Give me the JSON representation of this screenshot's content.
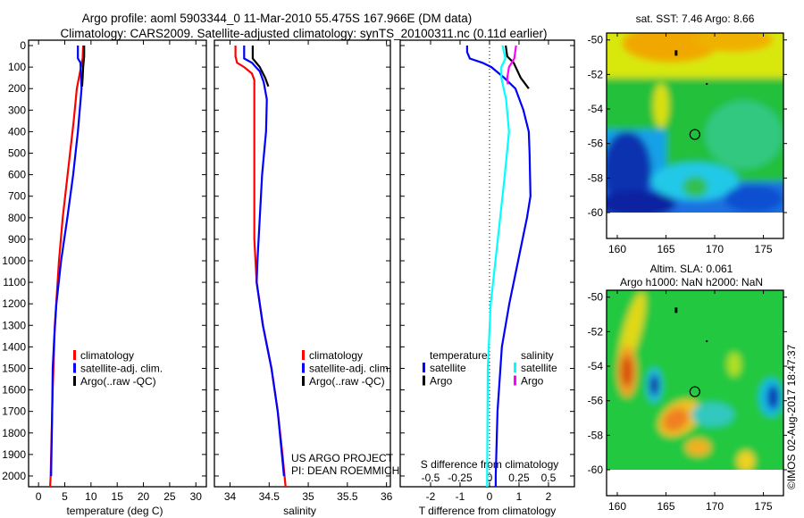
{
  "header": {
    "title_line1": "Argo profile: aoml 5903344_0 11-Mar-2010 55.475S 167.966E (DM data)",
    "title_line2": "Climatology: CARS2009. Satellite-adjusted climatology: synTS_20100311.nc (0.11d earlier)"
  },
  "credits": {
    "project": "US ARGO PROJECT",
    "pi": "PI: DEAN ROEMMICH",
    "stamp": "©IMOS 02-Aug-2017 18:47:37"
  },
  "colors": {
    "climatology": "#ff0000",
    "satellite": "#0000ff",
    "argo": "#000000",
    "salinity_satellite": "#00ffff",
    "salinity_argo": "#ff00ff"
  },
  "chart_data": [
    {
      "type": "line",
      "title": "",
      "xlabel": "temperature (deg C)",
      "ylabel": "",
      "xlim": [
        -1.9,
        32
      ],
      "ylim": [
        2050,
        -25
      ],
      "xticks": [
        "0",
        "5",
        "10",
        "15",
        "20",
        "25",
        "30"
      ],
      "xtick_values": [
        0,
        5,
        10,
        15,
        20,
        25,
        30
      ],
      "yticks": [
        "0",
        "100",
        "200",
        "300",
        "400",
        "500",
        "600",
        "700",
        "800",
        "900",
        "1000",
        "1100",
        "1200",
        "1300",
        "1400",
        "1500",
        "1600",
        "1700",
        "1800",
        "1900",
        "2000"
      ],
      "ytick_values": [
        0,
        100,
        200,
        300,
        400,
        500,
        600,
        700,
        800,
        900,
        1000,
        1100,
        1200,
        1300,
        1400,
        1500,
        1600,
        1700,
        1800,
        1900,
        2000
      ],
      "legend": [
        "climatology",
        "satellite-adj. clim.",
        "Argo(..raw -QC)"
      ],
      "series": [
        {
          "name": "climatology",
          "color": "#ff0000",
          "depth": [
            0,
            60,
            100,
            200,
            350,
            500,
            650,
            800,
            1000,
            1150,
            1300,
            1450,
            1600,
            1800,
            2000,
            2050
          ],
          "values": [
            8.5,
            8.4,
            8.1,
            7.3,
            6.7,
            6.0,
            5.3,
            4.6,
            3.9,
            3.5,
            3.1,
            2.9,
            2.7,
            2.5,
            2.3,
            2.2
          ]
        },
        {
          "name": "satellite-adj. clim.",
          "color": "#0000ff",
          "depth": [
            0,
            60,
            80,
            200,
            400,
            600,
            800,
            1000,
            1200,
            1350,
            1500,
            1700,
            2000
          ],
          "values": [
            7.5,
            7.5,
            8.0,
            8.2,
            7.5,
            6.6,
            5.5,
            4.3,
            3.4,
            3.0,
            2.7,
            2.6,
            2.4
          ]
        },
        {
          "name": "Argo(..raw -QC)",
          "color": "#000000",
          "depth": [
            0,
            50,
            100,
            150,
            190
          ],
          "values": [
            8.7,
            8.7,
            8.5,
            8.4,
            8.3
          ]
        }
      ]
    },
    {
      "type": "line",
      "xlabel": "salinity",
      "xlim": [
        33.8,
        36.05
      ],
      "ylim": [
        2050,
        -25
      ],
      "xticks": [
        "34",
        "34.5",
        "35",
        "35.5",
        "36"
      ],
      "xtick_values": [
        34,
        34.5,
        35,
        35.5,
        36
      ],
      "legend": [
        "climatology",
        "satellite-adj. clim.",
        "Argo(..raw -QC)"
      ],
      "series": [
        {
          "name": "climatology",
          "color": "#ff0000",
          "depth": [
            0,
            50,
            80,
            100,
            130,
            160,
            300,
            600,
            900,
            1100,
            1300,
            1500,
            1700,
            1900,
            2050
          ],
          "values": [
            34.07,
            34.07,
            34.09,
            34.18,
            34.28,
            34.31,
            34.31,
            34.31,
            34.31,
            34.34,
            34.42,
            34.53,
            34.61,
            34.67,
            34.71
          ]
        },
        {
          "name": "satellite-adj. clim.",
          "color": "#0000ff",
          "depth": [
            0,
            60,
            80,
            120,
            170,
            250,
            400,
            600,
            800,
            1000,
            1100,
            1300,
            1500,
            1700,
            2000
          ],
          "values": [
            34.18,
            34.18,
            34.28,
            34.38,
            34.43,
            34.47,
            34.46,
            34.41,
            34.38,
            34.35,
            34.34,
            34.42,
            34.53,
            34.61,
            34.69
          ]
        },
        {
          "name": "Argo(..raw -QC)",
          "color": "#000000",
          "depth": [
            0,
            60,
            100,
            150,
            190
          ],
          "values": [
            34.29,
            34.29,
            34.38,
            34.45,
            34.49
          ]
        }
      ]
    },
    {
      "type": "line",
      "xlabel": "T difference from climatology",
      "xlabel_top": "S difference from climatology",
      "xlim": [
        -3.03,
        2.88
      ],
      "ylim": [
        2050,
        -25
      ],
      "xticks": [
        "-2",
        "-1",
        "0",
        "1",
        "2"
      ],
      "xtick_values": [
        -2,
        -1,
        0,
        1,
        2
      ],
      "xticks_top": [
        "-0.5",
        "-0.25",
        "0",
        "0.25",
        "0.5"
      ],
      "xtick_values_top": [
        -0.5,
        -0.25,
        0,
        0.25,
        0.5
      ],
      "s_to_t_scale": 4,
      "legend_groups": [
        {
          "heading": "temperature",
          "items": [
            "satellite",
            "Argo"
          ]
        },
        {
          "heading": "salinity",
          "items": [
            "satellite",
            "Argo"
          ]
        }
      ],
      "series": [
        {
          "name": "temperature satellite",
          "color": "#0000ff",
          "var": "T",
          "depth": [
            0,
            30,
            60,
            80,
            100,
            150,
            200,
            300,
            400,
            500,
            700,
            800,
            1000,
            1200,
            1400,
            1700,
            2000,
            2050
          ],
          "values": [
            -0.76,
            -0.76,
            -0.67,
            -0.24,
            0.06,
            0.5,
            0.88,
            1.15,
            1.33,
            1.36,
            1.39,
            1.27,
            0.97,
            0.67,
            0.42,
            0.27,
            0.21,
            0.21
          ]
        },
        {
          "name": "salinity satellite",
          "color": "#00ffff",
          "var": "S",
          "depth": [
            0,
            60,
            100,
            150,
            250,
            400,
            600,
            800,
            1000,
            1200,
            1500,
            2000,
            2050
          ],
          "values": [
            0.11,
            0.135,
            0.1,
            0.1,
            0.14,
            0.165,
            0.13,
            0.09,
            0.05,
            0.01,
            -0.015,
            -0.02,
            -0.02
          ]
        },
        {
          "name": "temperature Argo",
          "color": "#000000",
          "var": "T",
          "depth": [
            0,
            50,
            80,
            150,
            200
          ],
          "values": [
            0.55,
            0.6,
            0.82,
            1.06,
            1.33
          ]
        },
        {
          "name": "salinity Argo",
          "color": "#ff00ff",
          "var": "S",
          "depth": [
            0,
            60,
            100,
            150,
            180
          ],
          "values": [
            0.225,
            0.21,
            0.165,
            0.15,
            0.155
          ]
        }
      ]
    },
    {
      "type": "heatmap",
      "title": "sat. SST: 7.46 Argo: 8.66",
      "xlim": [
        158.9,
        177.06
      ],
      "ylim": [
        -61.5,
        -49.6
      ],
      "xticks": [
        "160",
        "165",
        "170",
        "175"
      ],
      "xtick_values": [
        160,
        165,
        170,
        175
      ],
      "yticks": [
        "-50",
        "-52",
        "-54",
        "-56",
        "-58",
        "-60"
      ],
      "ytick_values": [
        -50,
        -52,
        -54,
        -56,
        -58,
        -60
      ],
      "profile_location": [
        167.966,
        -55.475
      ]
    },
    {
      "type": "heatmap",
      "title": "Altim. SLA: 0.061",
      "subtitle": "Argo h1000: NaN h2000: NaN",
      "xlim": [
        158.9,
        177.06
      ],
      "ylim": [
        -61.5,
        -49.6
      ],
      "xticks": [
        "160",
        "165",
        "170",
        "175"
      ],
      "xtick_values": [
        160,
        165,
        170,
        175
      ],
      "yticks": [
        "-50",
        "-52",
        "-54",
        "-56",
        "-58",
        "-60"
      ],
      "ytick_values": [
        -50,
        -52,
        -54,
        -56,
        -58,
        -60
      ],
      "profile_location": [
        167.966,
        -55.475
      ]
    }
  ]
}
